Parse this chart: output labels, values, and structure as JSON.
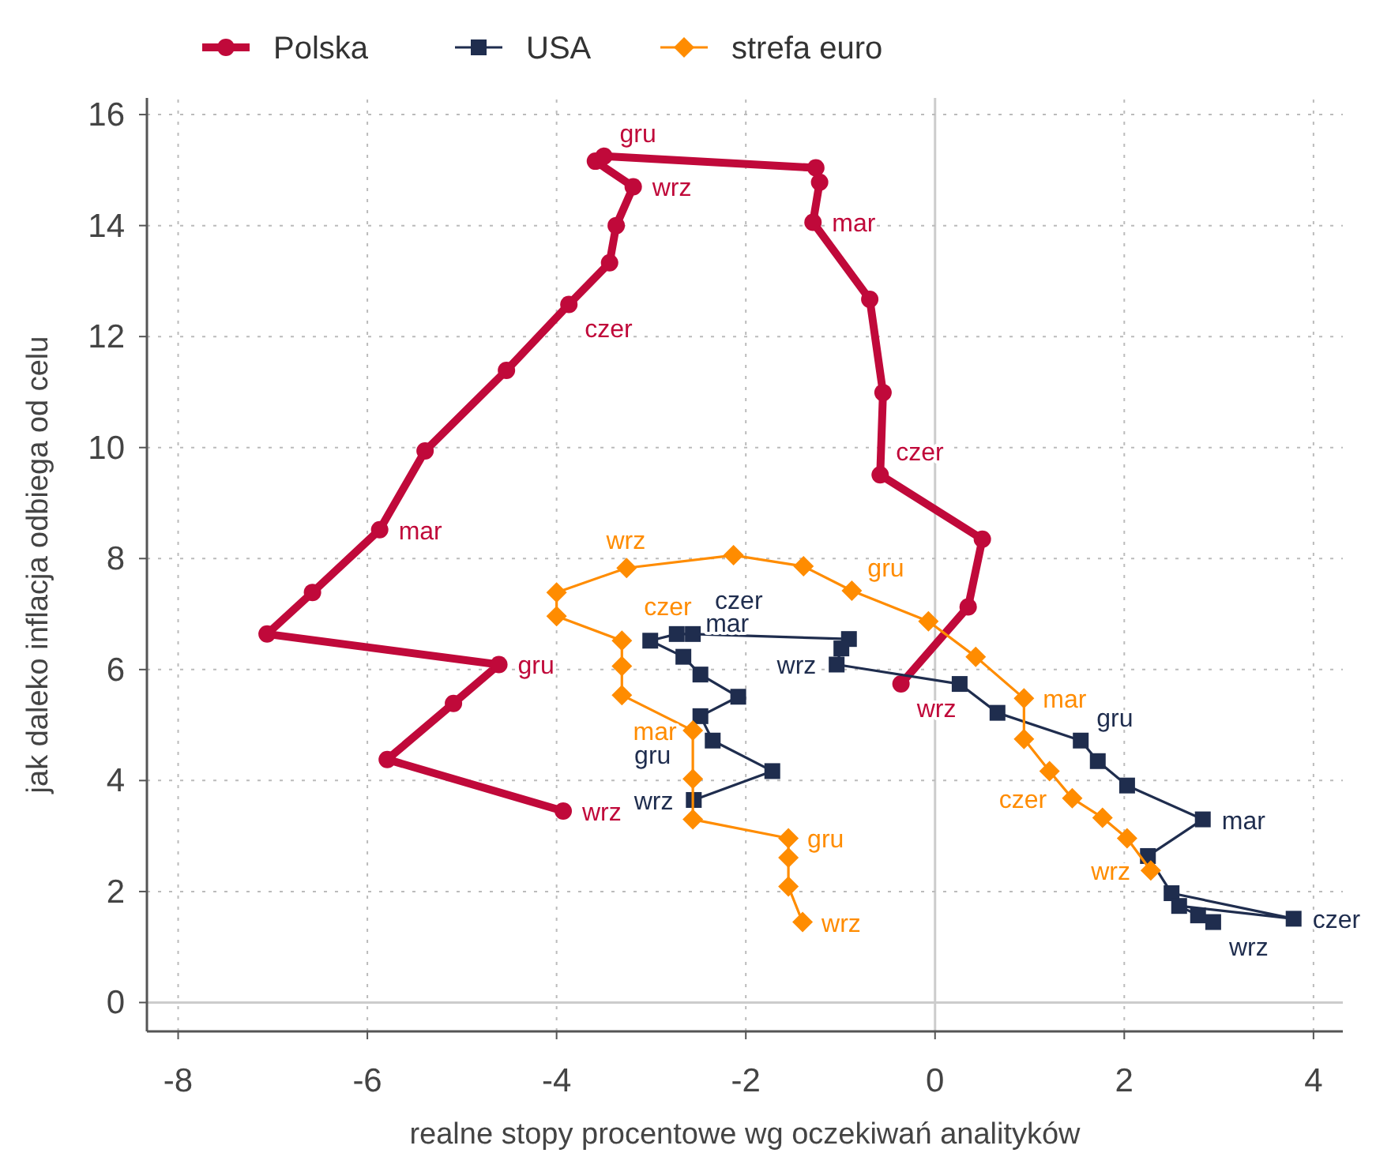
{
  "chart_data": {
    "type": "line",
    "xlabel": "realne stopy procentowe wg oczekiwań analityków",
    "ylabel": "jak daleko inflacja odbiega od celu",
    "xlim": [
      -8.33,
      4.31
    ],
    "ylim": [
      -0.52,
      16.3
    ],
    "xticks": [
      -8,
      -6,
      -4,
      -2,
      0,
      2,
      4
    ],
    "yticks": [
      0,
      2,
      4,
      6,
      8,
      10,
      12,
      14,
      16
    ],
    "grid": true,
    "legend": "top",
    "line_style": "solid",
    "series": [
      {
        "name": "Polska",
        "color": "#c0093a",
        "marker": "circle",
        "x": [
          -3.93,
          -5.79,
          -5.09,
          -4.61,
          -7.06,
          -6.58,
          -5.87,
          -5.39,
          -4.53,
          -3.87,
          -3.44,
          -3.37,
          -3.19,
          -3.59,
          -3.5,
          -1.26,
          -1.22,
          -1.29,
          -0.69,
          -0.55,
          -0.58,
          0.5,
          0.35,
          -0.36
        ],
        "values": [
          3.45,
          4.38,
          5.39,
          6.09,
          6.64,
          7.39,
          8.52,
          9.94,
          11.39,
          12.58,
          13.33,
          14.0,
          14.7,
          15.16,
          15.25,
          15.04,
          14.78,
          14.06,
          12.67,
          10.99,
          9.51,
          8.35,
          7.13,
          5.74
        ]
      },
      {
        "name": "USA",
        "color": "#1f2d4e",
        "marker": "square",
        "x": [
          -2.55,
          -1.72,
          -2.35,
          -2.48,
          -2.08,
          -2.48,
          -2.66,
          -3.01,
          -2.73,
          -2.56,
          -0.91,
          -0.99,
          -1.04,
          0.26,
          0.66,
          1.54,
          1.72,
          2.03,
          2.83,
          2.25,
          2.5,
          3.79,
          2.58,
          2.78,
          2.94
        ],
        "values": [
          3.65,
          4.17,
          4.72,
          5.16,
          5.51,
          5.91,
          6.23,
          6.52,
          6.64,
          6.64,
          6.55,
          6.38,
          6.09,
          5.74,
          5.22,
          4.72,
          4.35,
          3.91,
          3.3,
          2.64,
          1.97,
          1.51,
          1.74,
          1.57,
          1.45
        ]
      },
      {
        "name": "strefa euro",
        "color": "#ff8c00",
        "marker": "diamond",
        "x": [
          -1.4,
          -1.55,
          -1.55,
          -1.55,
          -2.56,
          -2.56,
          -2.56,
          -3.31,
          -3.31,
          -3.31,
          -4.0,
          -4.0,
          -3.26,
          -2.13,
          -1.39,
          -0.88,
          -0.07,
          0.43,
          0.94,
          0.94,
          1.21,
          1.45,
          1.77,
          2.03,
          2.28
        ],
        "values": [
          1.45,
          2.09,
          2.61,
          2.96,
          3.3,
          4.03,
          4.9,
          5.54,
          6.06,
          6.52,
          6.96,
          7.39,
          7.83,
          8.06,
          7.86,
          7.42,
          6.87,
          6.23,
          5.48,
          4.75,
          4.17,
          3.68,
          3.33,
          2.96,
          2.38
        ]
      }
    ],
    "annotations": [
      {
        "text": "wrz",
        "x": -3.93,
        "y": 3.45
      },
      {
        "text": "gru",
        "x": -4.61,
        "y": 6.09
      },
      {
        "text": "mar",
        "x": -5.87,
        "y": 8.52
      },
      {
        "text": "czer",
        "x": -3.87,
        "y": 12.58
      },
      {
        "text": "wrz",
        "x": -3.19,
        "y": 14.7
      },
      {
        "text": "gru",
        "x": -3.5,
        "y": 15.25
      },
      {
        "text": "mar",
        "x": -1.29,
        "y": 14.06
      },
      {
        "text": "czer",
        "x": -0.58,
        "y": 9.51
      },
      {
        "text": "wrz",
        "x": -0.36,
        "y": 5.74
      },
      {
        "text": "wrz",
        "x": -2.55,
        "y": 3.65
      },
      {
        "text": "gru",
        "x": -2.48,
        "y": 5.16
      },
      {
        "text": "mar",
        "x": -2.66,
        "y": 6.23
      },
      {
        "text": "czer",
        "x": -2.56,
        "y": 6.64
      },
      {
        "text": "wrz",
        "x": -1.04,
        "y": 6.09
      },
      {
        "text": "gru",
        "x": 1.54,
        "y": 4.72
      },
      {
        "text": "mar",
        "x": 2.83,
        "y": 3.3
      },
      {
        "text": "czer",
        "x": 3.79,
        "y": 1.51
      },
      {
        "text": "wrz",
        "x": 2.94,
        "y": 1.45
      },
      {
        "text": "wrz",
        "x": -1.4,
        "y": 1.45
      },
      {
        "text": "gru",
        "x": -1.55,
        "y": 2.96
      },
      {
        "text": "mar",
        "x": -2.56,
        "y": 4.9
      },
      {
        "text": "czer",
        "x": -3.31,
        "y": 6.52
      },
      {
        "text": "wrz",
        "x": -3.26,
        "y": 7.83
      },
      {
        "text": "gru",
        "x": -0.88,
        "y": 7.42
      },
      {
        "text": "mar",
        "x": 0.94,
        "y": 5.48
      },
      {
        "text": "czer",
        "x": 1.45,
        "y": 3.68
      },
      {
        "text": "wrz",
        "x": 2.28,
        "y": 2.38
      }
    ]
  }
}
